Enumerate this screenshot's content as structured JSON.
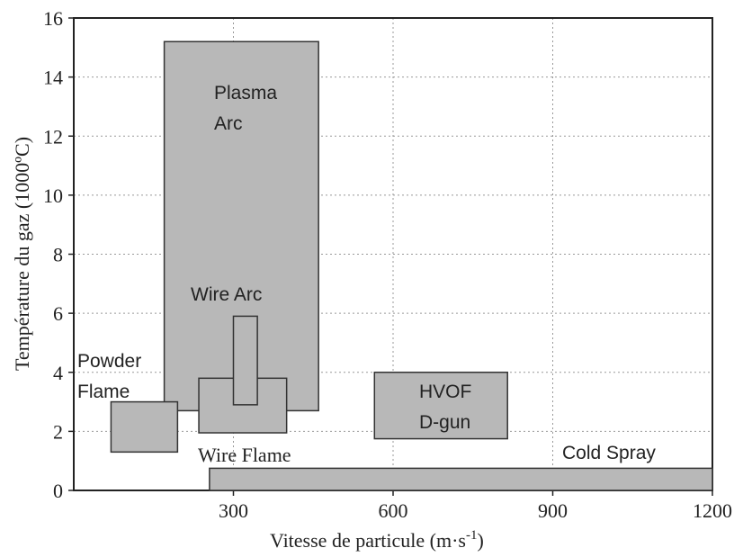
{
  "chart_data": {
    "type": "range-box",
    "xlabel": [
      "Vitesse de particule (m·s",
      "-1",
      ")"
    ],
    "ylabel": "Température du gaz (1000ºC)",
    "xlim": [
      0,
      1200
    ],
    "xticks": [
      300,
      600,
      900,
      1200
    ],
    "ylim": [
      0,
      16
    ],
    "yticks": [
      0,
      2,
      4,
      6,
      8,
      10,
      12,
      14,
      16
    ],
    "grid": true,
    "color": "#b8b8b8",
    "series": [
      {
        "name": [
          "Plasma",
          "Arc"
        ],
        "x": [
          170,
          460
        ],
        "y": [
          2.7,
          15.2
        ]
      },
      {
        "name": [
          "Wire Flame"
        ],
        "x": [
          235,
          400
        ],
        "y": [
          1.95,
          3.8
        ]
      },
      {
        "name": [
          "Wire Arc"
        ],
        "x": [
          300,
          345
        ],
        "y": [
          2.9,
          5.9
        ]
      },
      {
        "name": [
          "Powder",
          "Flame"
        ],
        "x": [
          70,
          195
        ],
        "y": [
          1.3,
          3.0
        ]
      },
      {
        "name": [
          "HVOF",
          "D-gun"
        ],
        "x": [
          565,
          815
        ],
        "y": [
          1.75,
          4.0
        ]
      },
      {
        "name": [
          "Cold Spray"
        ],
        "x": [
          255,
          1200
        ],
        "y": [
          0,
          0.75
        ]
      }
    ]
  }
}
